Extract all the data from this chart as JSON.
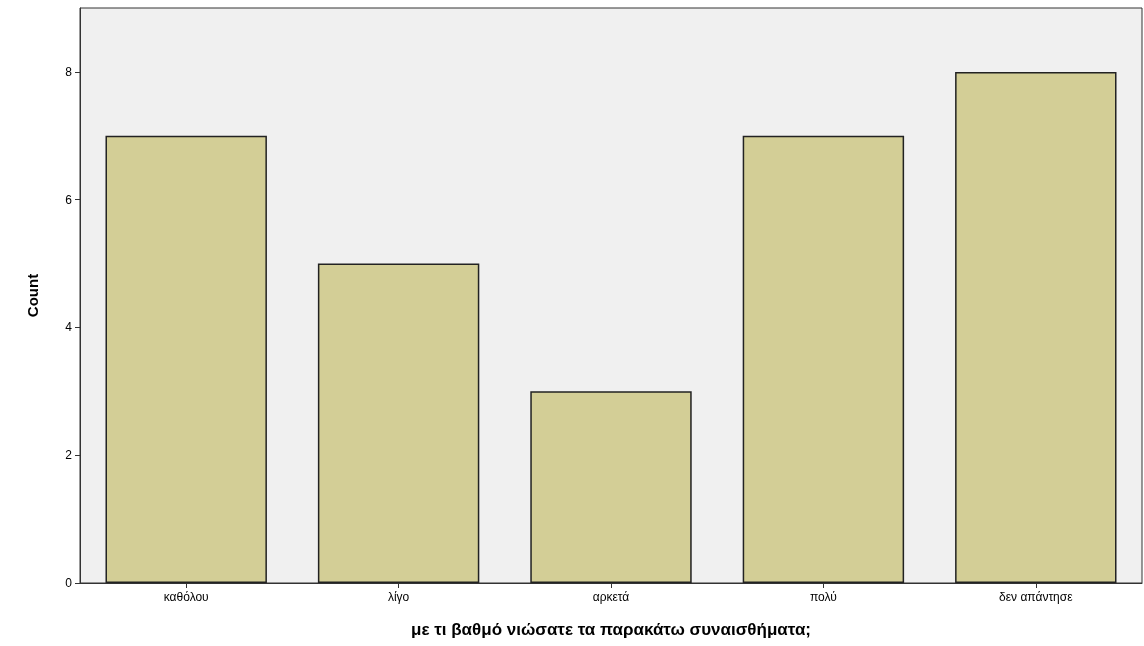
{
  "chart_data": {
    "type": "bar",
    "xlabel": "με τι βαθμό νιώσατε τα παρακάτω συναισθήματα;",
    "ylabel": "Count",
    "categories": [
      "καθόλου",
      "λίγο",
      "αρκετά",
      "πολύ",
      "δεν απάντησε"
    ],
    "values": [
      7,
      5,
      3,
      7,
      8
    ],
    "color": "#d3ce96",
    "ylim": [
      0,
      9
    ],
    "yticks": [
      0,
      2,
      4,
      6,
      8
    ],
    "grid": false
  }
}
